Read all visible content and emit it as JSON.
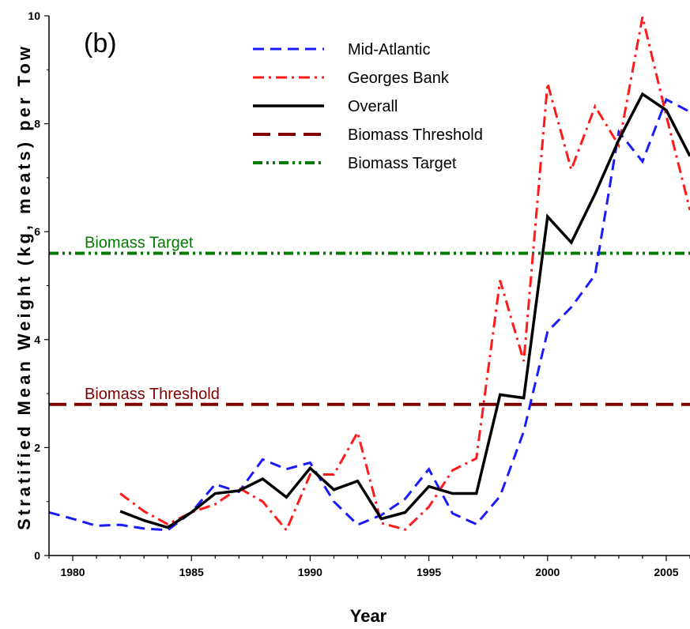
{
  "chart_data": {
    "type": "line",
    "panel_label": "(b)",
    "xlabel": "Year",
    "ylabel": "Stratified Mean Weight (kg, meats) per Tow",
    "xlim": [
      1979,
      2006
    ],
    "ylim": [
      0,
      10
    ],
    "x_ticks": [
      1980,
      1985,
      1990,
      1995,
      2000,
      2005
    ],
    "y_ticks": [
      0,
      2,
      4,
      6,
      8,
      10
    ],
    "grid": false,
    "legend_position": "top-center",
    "series": [
      {
        "name": "Mid-Atlantic",
        "color": "#1a1aff",
        "style": "dashed",
        "x": [
          1979,
          1980,
          1981,
          1982,
          1983,
          1984,
          1985,
          1986,
          1987,
          1988,
          1989,
          1990,
          1991,
          1992,
          1993,
          1994,
          1995,
          1996,
          1997,
          1998,
          1999,
          2000,
          2001,
          2002,
          2003,
          2004,
          2005,
          2006
        ],
        "y": [
          0.8,
          0.68,
          0.55,
          0.57,
          0.5,
          0.47,
          0.8,
          1.32,
          1.18,
          1.78,
          1.6,
          1.72,
          1.0,
          0.57,
          0.75,
          1.05,
          1.6,
          0.78,
          0.58,
          1.1,
          2.3,
          4.15,
          4.6,
          5.2,
          7.85,
          7.3,
          8.45,
          8.22
        ]
      },
      {
        "name": "Georges Bank",
        "color": "#ff1a1a",
        "style": "dashdot",
        "x": [
          1982,
          1983,
          1984,
          1985,
          1986,
          1987,
          1988,
          1989,
          1990,
          1991,
          1992,
          1993,
          1994,
          1995,
          1996,
          1997,
          1998,
          1999,
          2000,
          2001,
          2002,
          2003,
          2004,
          2005,
          2006
        ],
        "y": [
          1.15,
          0.82,
          0.58,
          0.8,
          0.95,
          1.25,
          1.0,
          0.47,
          1.5,
          1.5,
          2.28,
          0.6,
          0.48,
          0.9,
          1.58,
          1.8,
          5.1,
          3.6,
          8.75,
          7.15,
          8.32,
          7.6,
          9.98,
          8.15,
          6.4
        ]
      },
      {
        "name": "Overall",
        "color": "#000000",
        "style": "solid",
        "x": [
          1982,
          1983,
          1984,
          1985,
          1986,
          1987,
          1988,
          1989,
          1990,
          1991,
          1992,
          1993,
          1994,
          1995,
          1996,
          1997,
          1998,
          1999,
          2000,
          2001,
          2002,
          2003,
          2004,
          2005,
          2006
        ],
        "y": [
          0.82,
          0.65,
          0.52,
          0.8,
          1.15,
          1.2,
          1.42,
          1.08,
          1.62,
          1.22,
          1.38,
          0.68,
          0.8,
          1.28,
          1.15,
          1.15,
          2.98,
          2.92,
          6.28,
          5.8,
          6.7,
          7.7,
          8.55,
          8.25,
          7.4
        ]
      }
    ],
    "reference_lines": [
      {
        "name": "Biomass Threshold",
        "label": "Biomass Threshold",
        "value": 2.8,
        "color": "#800000",
        "style": "longdash"
      },
      {
        "name": "Biomass Target",
        "label": "Biomass Target",
        "value": 5.6,
        "color": "#007a00",
        "style": "dashdotdot"
      }
    ]
  }
}
